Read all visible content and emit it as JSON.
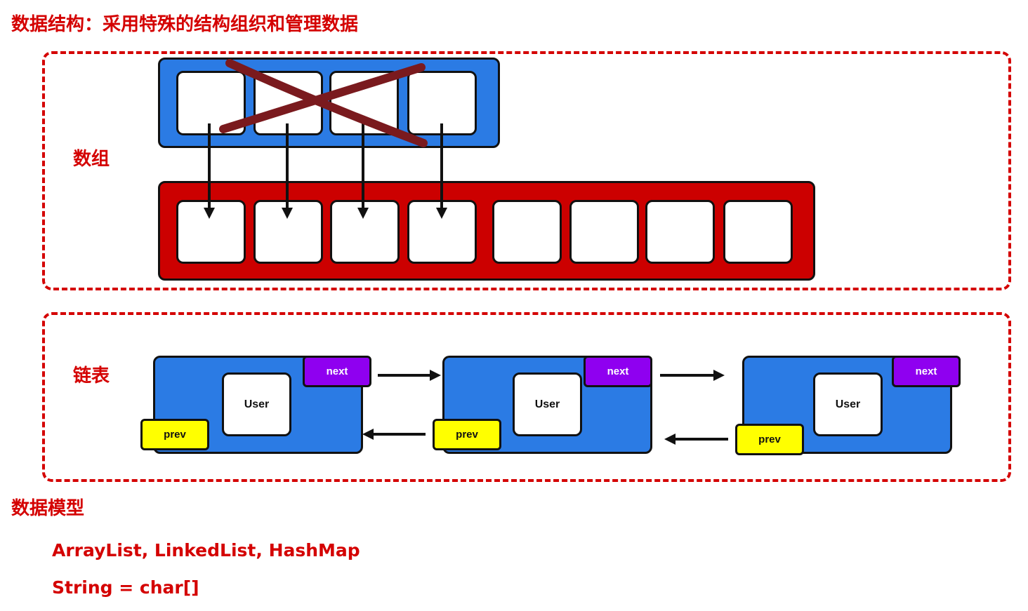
{
  "title": "数据结构：采用特殊的结构组织和管理数据",
  "array_section": {
    "label": "数组"
  },
  "list_section": {
    "label": "链表",
    "nodes": [
      {
        "content": "User",
        "next": "next",
        "prev": "prev"
      },
      {
        "content": "User",
        "next": "next",
        "prev": "prev"
      },
      {
        "content": "User",
        "next": "next",
        "prev": "prev"
      }
    ]
  },
  "data_model": {
    "title": "数据模型",
    "line1": "ArrayList, LinkedList, HashMap",
    "line2": "String = char[]"
  },
  "colors": {
    "accent_red": "#d40000",
    "old_array_blue": "#2b7be4",
    "new_array_red": "#cc0000",
    "cross_maroon": "#7a1a1e",
    "next_purple": "#8f00f0",
    "prev_yellow": "#ffff00"
  }
}
